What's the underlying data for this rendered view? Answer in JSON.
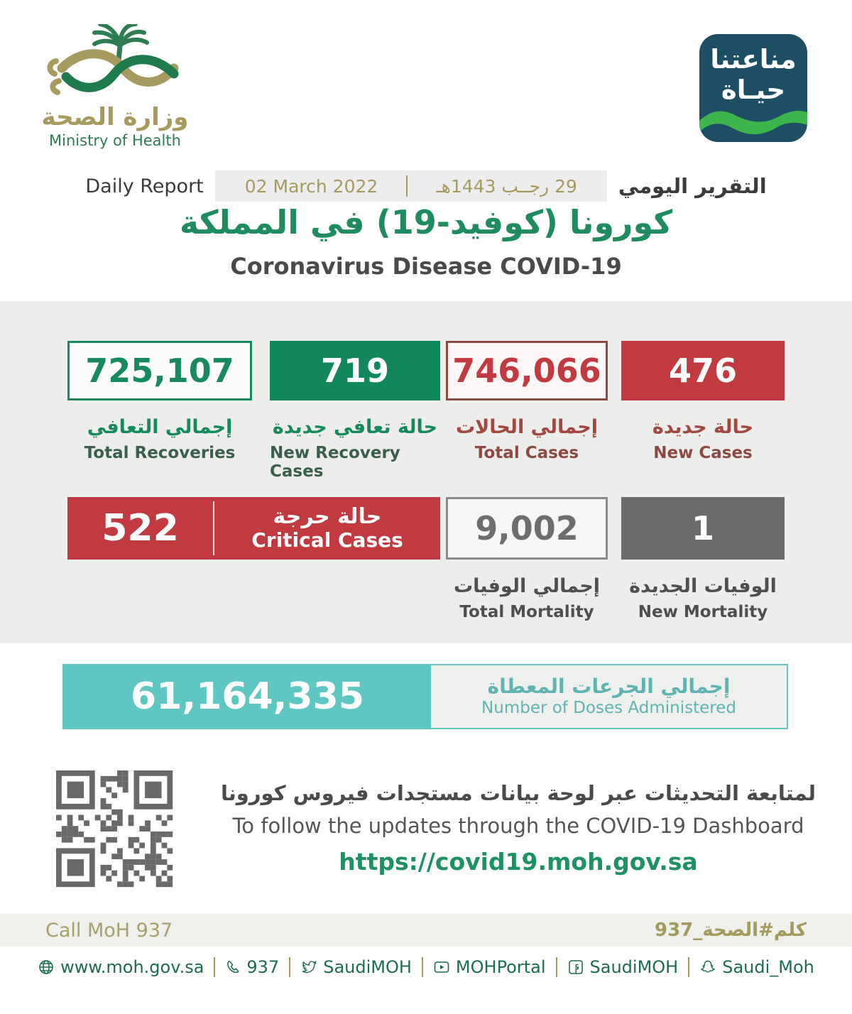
{
  "header": {
    "logo": {
      "arabic": "وزارة الصحة",
      "english": "Ministry of Health"
    },
    "badge": {
      "line1": "مناعتنا",
      "line2": "حيـاة"
    },
    "report_row": {
      "daily_report": "Daily Report",
      "date_gregorian": "02 March 2022",
      "date_hijri": "29 رجــب 1443هـ",
      "report_title_ar": "التقرير اليومي"
    },
    "title_ar": "كورونا (كوفيد-19) في المملكة",
    "title_en": "Coronavirus Disease COVID-19"
  },
  "stats": {
    "total_recoveries": {
      "value": "725,107",
      "label_ar": "إجمالي التعافي",
      "label_en": "Total Recoveries"
    },
    "new_recovery_cases": {
      "value": "719",
      "label_ar": "حالة تعافي جديدة",
      "label_en": "New Recovery Cases"
    },
    "total_cases": {
      "value": "746,066",
      "label_ar": "إجمالي الحالات",
      "label_en": "Total Cases"
    },
    "new_cases": {
      "value": "476",
      "label_ar": "حالة جديدة",
      "label_en": "New Cases"
    },
    "critical_cases": {
      "value": "522",
      "label_ar": "حالة حرجة",
      "label_en": "Critical Cases"
    },
    "total_mortality": {
      "value": "9,002",
      "label_ar": "إجمالي الوفيات",
      "label_en": "Total Mortality"
    },
    "new_mortality": {
      "value": "1",
      "label_ar": "الوفيات الجديدة",
      "label_en": "New Mortality"
    },
    "doses_administered": {
      "value": "61,164,335",
      "label_ar": "إجمالي الجرعات المعطاة",
      "label_en": "Number of Doses Administered"
    }
  },
  "dashboard": {
    "line_ar": "لمتابعة التحديثات عبر لوحة بيانات مستجدات فيروس كورونا",
    "line_en": "To follow the updates through the COVID-19 Dashboard",
    "url": "https://covid19.moh.gov.sa"
  },
  "call_band": {
    "left": "Call MoH 937",
    "right": "كلم#الصحة_937"
  },
  "footer": {
    "items": [
      {
        "icon": "globe-icon",
        "label": "www.moh.gov.sa"
      },
      {
        "icon": "phone-icon",
        "label": "937"
      },
      {
        "icon": "twitter-icon",
        "label": "SaudiMOH"
      },
      {
        "icon": "youtube-icon",
        "label": "MOHPortal"
      },
      {
        "icon": "facebook-icon",
        "label": "SaudiMOH"
      },
      {
        "icon": "snapchat-icon",
        "label": "Saudi_Moh"
      }
    ]
  },
  "colors": {
    "green": "#168a5e",
    "red": "#c13a40",
    "gray": "#6b6b6b",
    "teal": "#5ec7c2",
    "gold": "#a79a5f",
    "badge_bg": "#1d4e63",
    "wave_green": "#3cb54a"
  }
}
